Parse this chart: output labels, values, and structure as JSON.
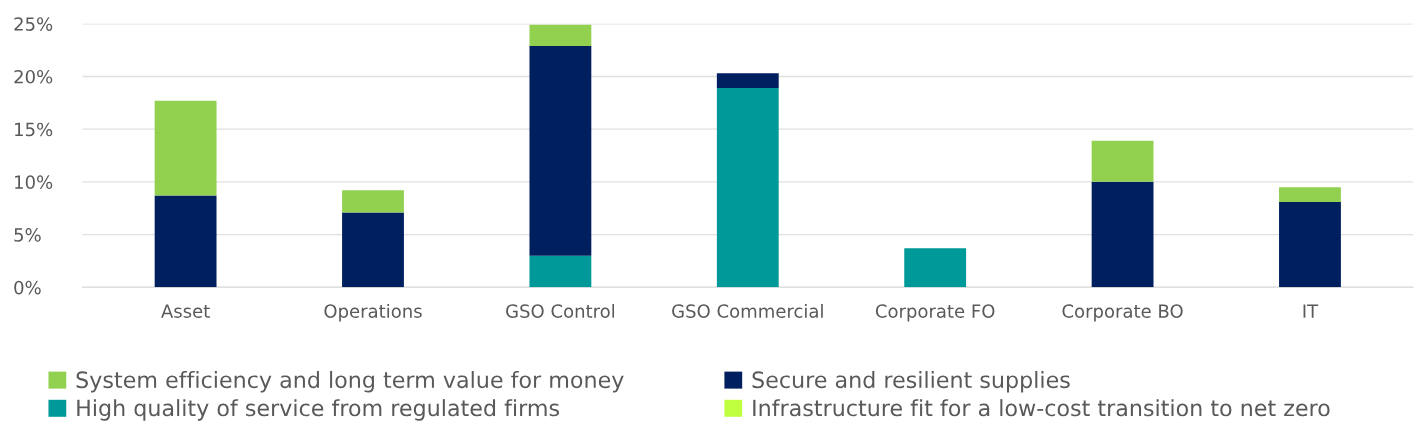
{
  "chart_data": {
    "type": "bar",
    "stacked": true,
    "categories": [
      "Asset",
      "Operations",
      "GSO Control",
      "GSO Commercial",
      "Corporate FO",
      "Corporate BO",
      "IT"
    ],
    "series": [
      {
        "name": "High quality of service from regulated firms",
        "color": "#009999",
        "values": [
          0,
          0,
          3.0,
          18.9,
          3.7,
          0,
          0
        ]
      },
      {
        "name": "Secure and resilient supplies",
        "color": "#001f5f",
        "values": [
          8.7,
          7.1,
          19.9,
          1.4,
          0,
          10.0,
          8.1
        ]
      },
      {
        "name": "System efficiency and long term value for money",
        "color": "#92d050",
        "values": [
          9.0,
          2.1,
          2.0,
          0,
          0,
          3.9,
          1.4
        ]
      },
      {
        "name": "Infrastructure fit for a low-cost transition to net zero",
        "color": "#bfff3f",
        "values": [
          0,
          0,
          0,
          0,
          0,
          0,
          0
        ]
      }
    ],
    "ylim": [
      0,
      25
    ],
    "yticks": [
      {
        "value": 0,
        "label": "0%"
      },
      {
        "value": 5,
        "label": "5%"
      },
      {
        "value": 10,
        "label": "10%"
      },
      {
        "value": 15,
        "label": "15%"
      },
      {
        "value": 20,
        "label": "20%"
      },
      {
        "value": 25,
        "label": "25%"
      }
    ],
    "grid": "y",
    "legend": "bottom"
  }
}
